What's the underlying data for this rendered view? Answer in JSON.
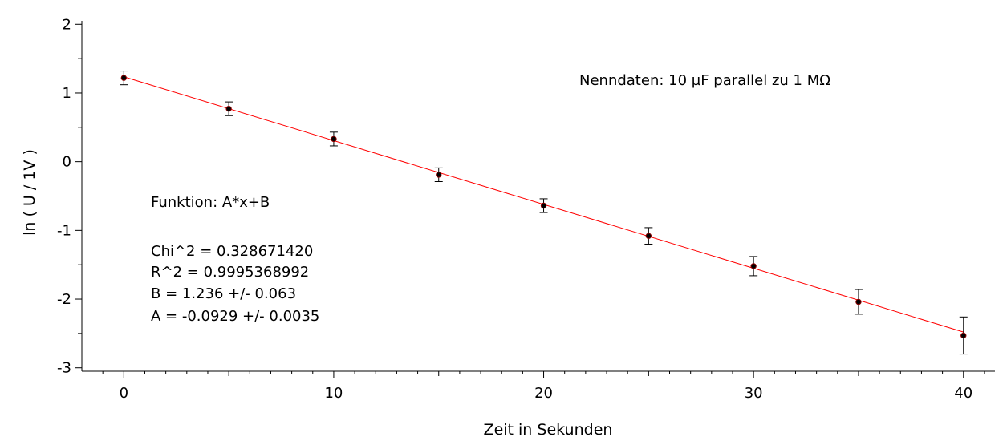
{
  "chart_data": {
    "type": "scatter",
    "title": "",
    "xlabel": "Zeit in Sekunden",
    "ylabel": "ln ( U / 1V )",
    "xlim": [
      -2,
      41.5
    ],
    "ylim": [
      -3.05,
      2.05
    ],
    "xticks": [
      0,
      10,
      20,
      30,
      40
    ],
    "xtick_labels": [
      "0",
      "10",
      "20",
      "30",
      "40"
    ],
    "yticks": [
      -3,
      -2,
      -1,
      0,
      1,
      2
    ],
    "ytick_labels": [
      "-3",
      "-2",
      "-1",
      "0",
      "1",
      "2"
    ],
    "grid": false,
    "series": [
      {
        "x": [
          0,
          5,
          10,
          15,
          20,
          25,
          30,
          35,
          40
        ],
        "y": [
          1.22,
          0.77,
          0.33,
          -0.19,
          -0.64,
          -1.08,
          -1.52,
          -2.04,
          -2.53
        ],
        "yerr": [
          0.1,
          0.1,
          0.1,
          0.1,
          0.1,
          0.12,
          0.14,
          0.18,
          0.27
        ],
        "marker_color": "#000000",
        "marker_edge_color": "#8b0000"
      }
    ],
    "fit": {
      "function": "A*x+B",
      "A": -0.0929,
      "B": 1.236,
      "x_range": [
        0,
        40
      ],
      "color": "#ff0000"
    },
    "annotations": {
      "nenndaten": "Nenndaten:  10 µF parallel zu 1 MΩ",
      "funktion": "Funktion: A*x+B",
      "chi2": "Chi^2 = 0.328671420",
      "r2": "R^2 = 0.9995368992",
      "b_value": "B = 1.236 +/- 0.063",
      "a_value": "A = -0.0929 +/- 0.0035"
    }
  }
}
